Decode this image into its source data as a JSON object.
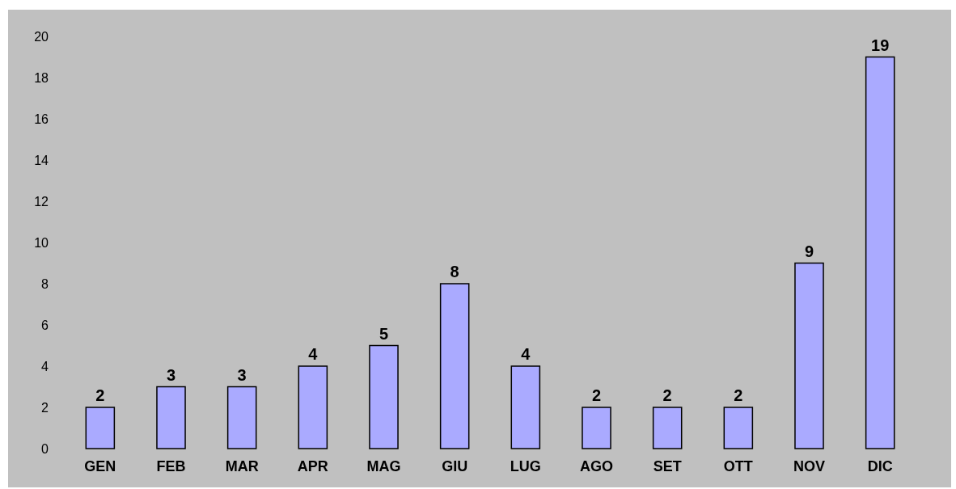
{
  "chart_data": {
    "type": "bar",
    "categories": [
      "GEN",
      "FEB",
      "MAR",
      "APR",
      "MAG",
      "GIU",
      "LUG",
      "AGO",
      "SET",
      "OTT",
      "NOV",
      "DIC"
    ],
    "values": [
      2,
      3,
      3,
      4,
      5,
      8,
      4,
      2,
      2,
      2,
      9,
      19
    ],
    "color": "#aaaaff",
    "ylim": [
      0,
      20
    ],
    "yticks": [
      0,
      2,
      4,
      6,
      8,
      10,
      12,
      14,
      16,
      18,
      20
    ],
    "data_labels": true
  }
}
